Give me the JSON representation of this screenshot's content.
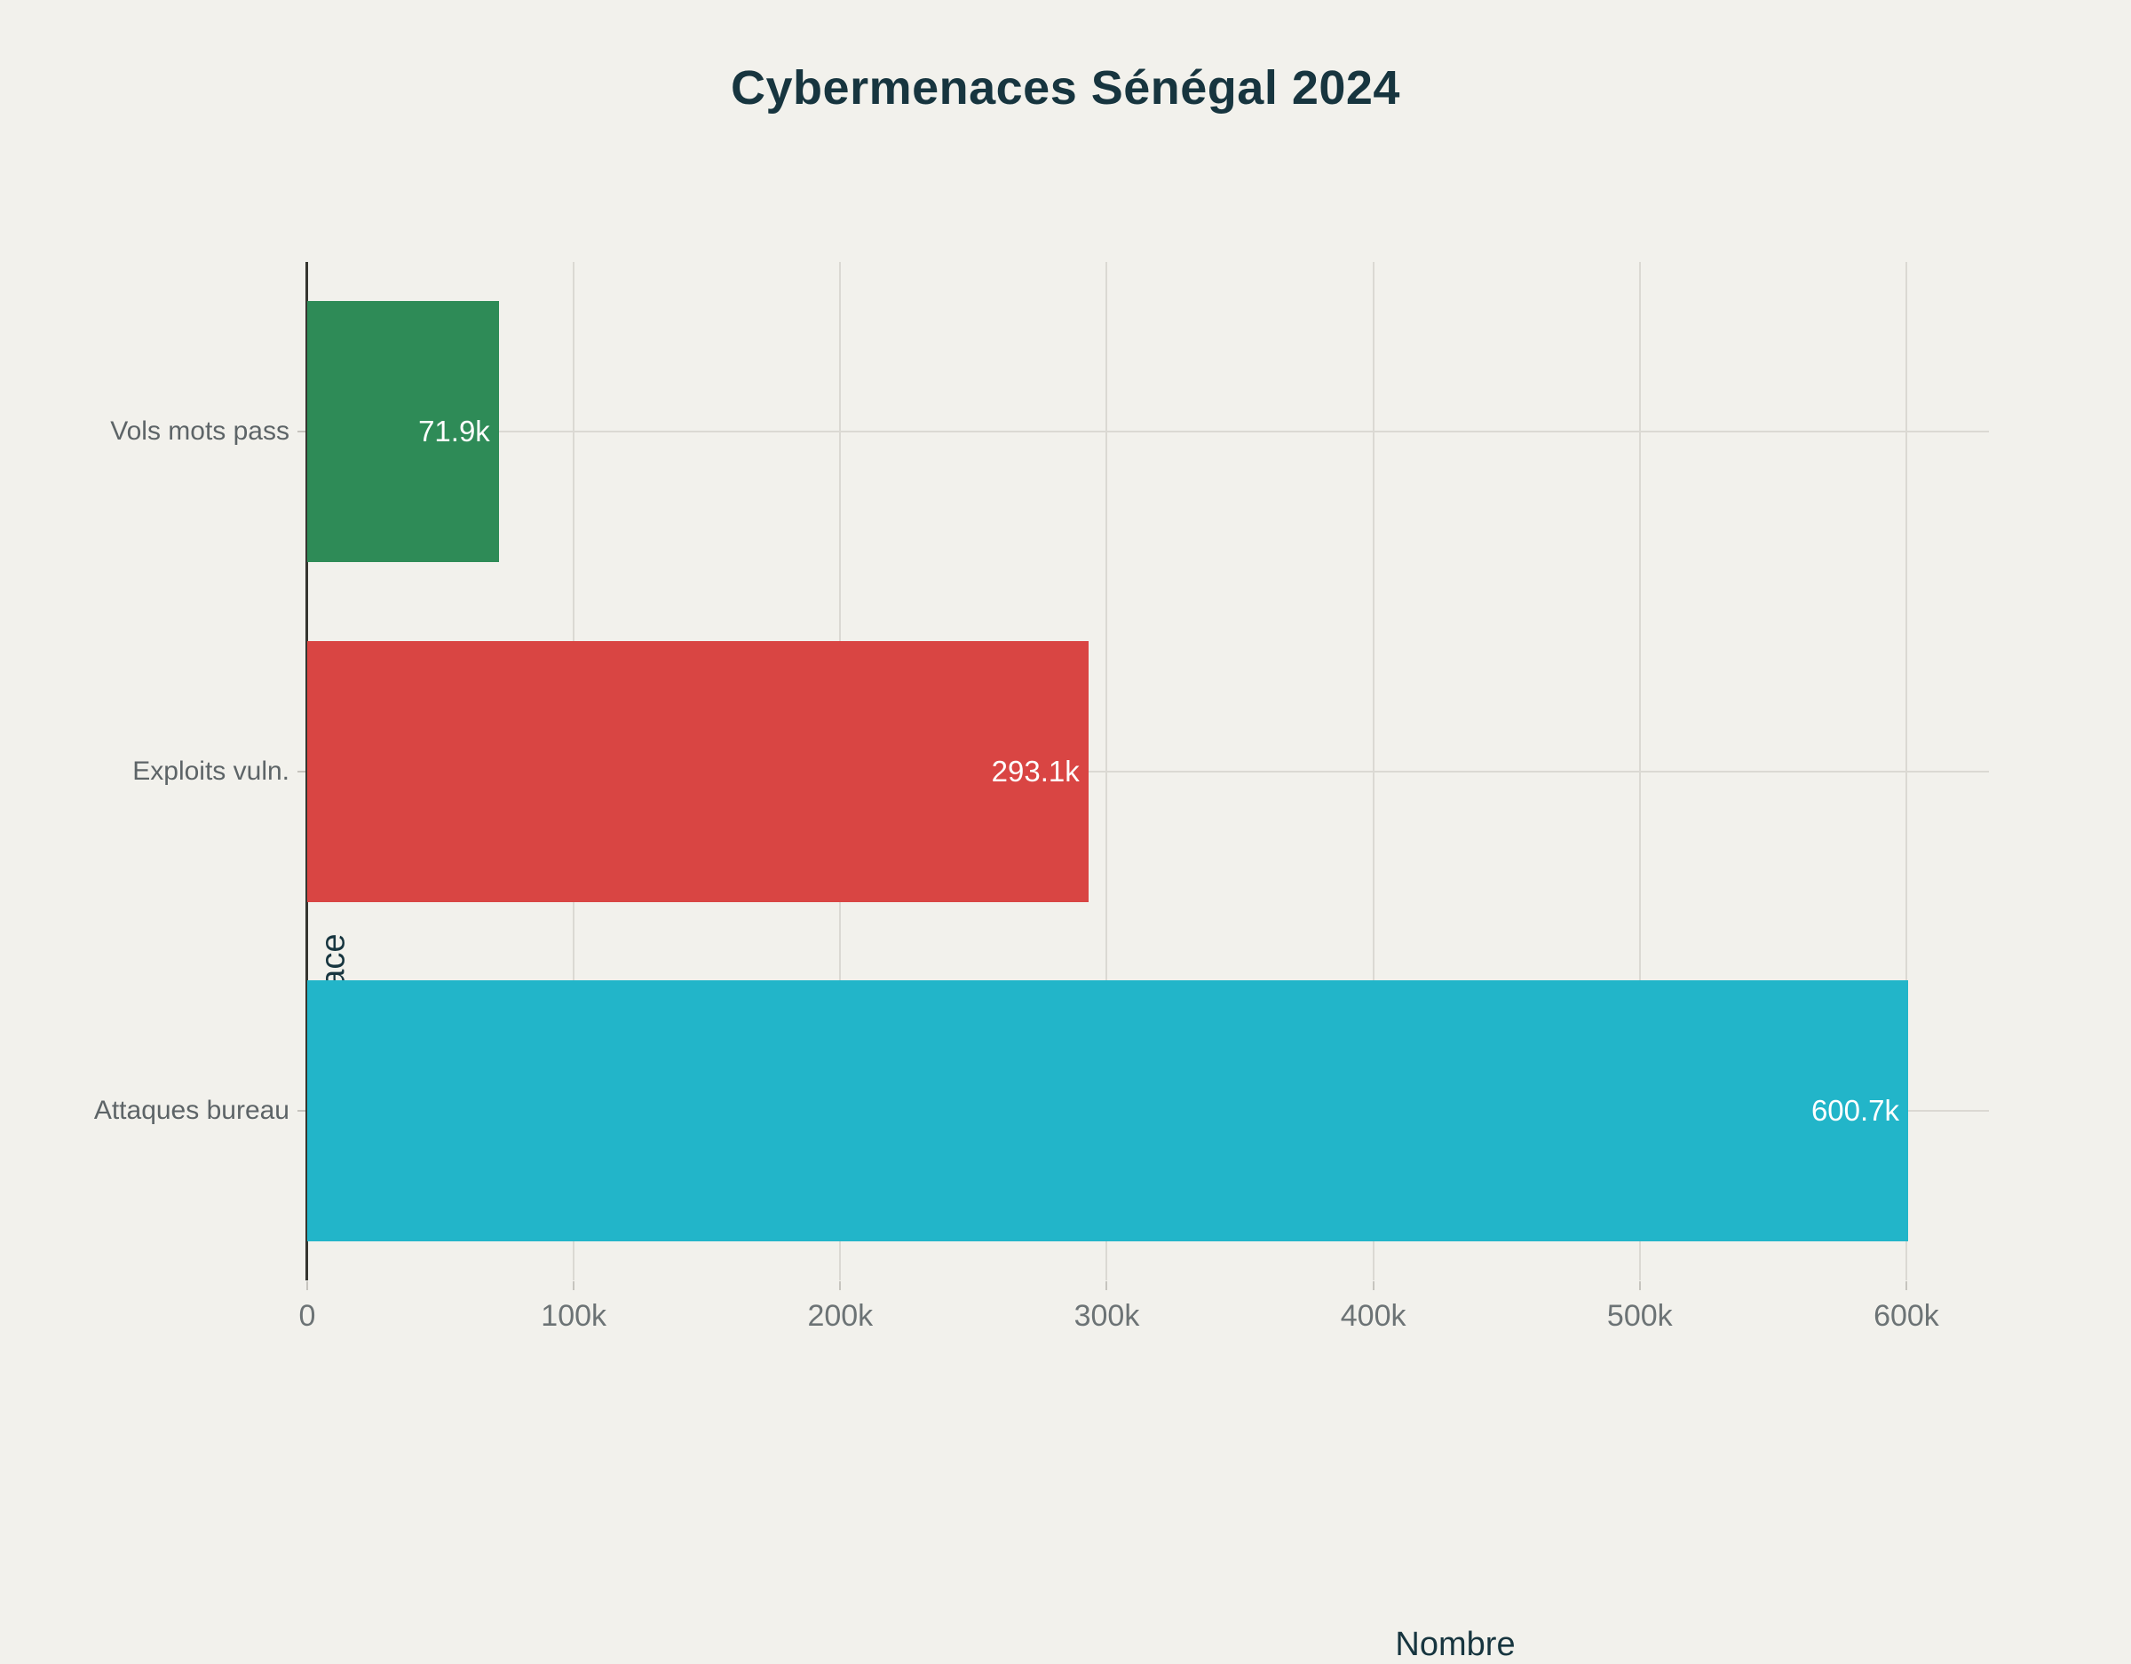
{
  "title": "Cybermenaces Sénégal 2024",
  "colors": {
    "background": "#f2f1ec",
    "title_text": "#17353f",
    "axis_title_text": "#17353f",
    "category_label_text": "#5d6467",
    "tick_label_text": "#6c7375",
    "gridline": "#dbd9d3",
    "zeroline": "#35352f",
    "tick_mark": "#c6c4be",
    "value_label_text": "#ffffff",
    "bar_green": "#2e8b57",
    "bar_red": "#d94543",
    "bar_cyan": "#22b5c9"
  },
  "chart_data": {
    "type": "bar",
    "orientation": "horizontal",
    "title": "Cybermenaces Sénégal 2024",
    "xlabel": "Nombre",
    "ylabel": "Type menace",
    "categories": [
      "Vols mots pass",
      "Exploits vuln.",
      "Attaques bureau"
    ],
    "values": [
      71900,
      293100,
      600700
    ],
    "value_labels": [
      "71.9k",
      "293.1k",
      "600.7k"
    ],
    "bar_colors": [
      "#2e8b57",
      "#d94543",
      "#22b5c9"
    ],
    "x_ticks": [
      {
        "value": 0,
        "label": "0"
      },
      {
        "value": 100000,
        "label": "100k"
      },
      {
        "value": 200000,
        "label": "200k"
      },
      {
        "value": 300000,
        "label": "300k"
      },
      {
        "value": 400000,
        "label": "400k"
      },
      {
        "value": 500000,
        "label": "500k"
      },
      {
        "value": 600000,
        "label": "600k"
      }
    ],
    "xlim": [
      0,
      631000
    ],
    "grid": true,
    "legend": false,
    "value_labels_position": "inside-end"
  }
}
